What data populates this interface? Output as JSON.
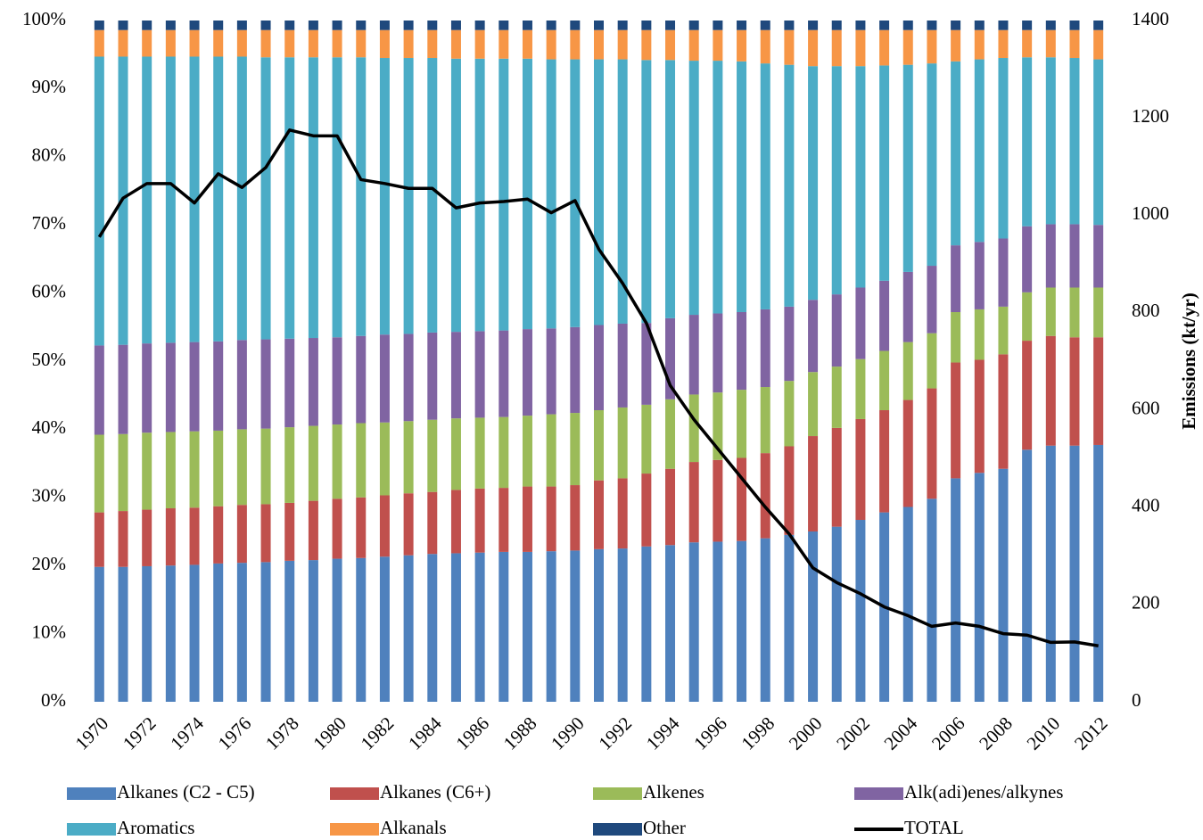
{
  "chart_data": {
    "type": "bar",
    "stacked": true,
    "categories": [
      "1970",
      null,
      "1972",
      null,
      "1974",
      null,
      "1976",
      null,
      "1978",
      null,
      "1980",
      null,
      "1982",
      null,
      "1984",
      null,
      "1986",
      null,
      "1988",
      null,
      "1990",
      null,
      "1992",
      null,
      "1994",
      null,
      "1996",
      null,
      "1998",
      null,
      "2000",
      null,
      "2002",
      null,
      "2004",
      null,
      "2006",
      null,
      "2008",
      null,
      "2010",
      null,
      "2012"
    ],
    "ylim": [
      0,
      100
    ],
    "yticks": [
      {
        "value": 0,
        "label": "0%"
      },
      {
        "value": 10,
        "label": "10%"
      },
      {
        "value": 20,
        "label": "20%"
      },
      {
        "value": 30,
        "label": "30%"
      },
      {
        "value": 40,
        "label": "40%"
      },
      {
        "value": 50,
        "label": "50%"
      },
      {
        "value": 60,
        "label": "60%"
      },
      {
        "value": 70,
        "label": "70%"
      },
      {
        "value": 80,
        "label": "80%"
      },
      {
        "value": 90,
        "label": "90%"
      },
      {
        "value": 100,
        "label": "100%"
      }
    ],
    "y2label": "Emissions (kt/yr)",
    "y2lim": [
      0,
      1400
    ],
    "y2ticks": [
      0,
      200,
      400,
      600,
      800,
      1000,
      1200,
      1400
    ],
    "legend": "bottom",
    "series": [
      {
        "name": "Alkanes (C2 - C5)",
        "color": "#4f81bd",
        "values": [
          19.8,
          19.8,
          19.9,
          20.0,
          20.1,
          20.3,
          20.4,
          20.5,
          20.7,
          20.8,
          21.0,
          21.1,
          21.3,
          21.5,
          21.7,
          21.8,
          21.9,
          22.0,
          22.0,
          22.1,
          22.2,
          22.4,
          22.5,
          22.8,
          23.0,
          23.4,
          23.5,
          23.6,
          24.0,
          24.5,
          25.0,
          25.7,
          26.7,
          27.8,
          28.6,
          29.8,
          32.8,
          33.6,
          34.2,
          37.0,
          37.6,
          37.6,
          37.7
        ]
      },
      {
        "name": "Alkanes (C6+)",
        "color": "#c0504d",
        "values": [
          8.0,
          8.2,
          8.3,
          8.4,
          8.4,
          8.4,
          8.5,
          8.5,
          8.5,
          8.7,
          8.8,
          8.9,
          9.0,
          9.1,
          9.1,
          9.3,
          9.4,
          9.4,
          9.6,
          9.5,
          9.6,
          10.1,
          10.3,
          10.7,
          11.2,
          11.8,
          12.0,
          12.2,
          12.5,
          13.0,
          14.0,
          14.5,
          14.8,
          15.0,
          15.7,
          16.2,
          17.0,
          16.6,
          16.8,
          16.0,
          16.1,
          15.9,
          15.8
        ]
      },
      {
        "name": "Alkenes",
        "color": "#9bbb59",
        "values": [
          11.4,
          11.3,
          11.3,
          11.2,
          11.2,
          11.1,
          11.1,
          11.1,
          11.1,
          11.0,
          10.9,
          10.9,
          10.7,
          10.6,
          10.6,
          10.5,
          10.4,
          10.4,
          10.4,
          10.6,
          10.6,
          10.3,
          10.4,
          10.1,
          10.2,
          9.9,
          9.9,
          10.0,
          9.7,
          9.6,
          9.4,
          9.0,
          8.8,
          8.7,
          8.5,
          8.1,
          7.4,
          7.4,
          7.0,
          7.1,
          7.1,
          7.3,
          7.3
        ]
      },
      {
        "name": "Alk(adi)enes/alkynes",
        "color": "#8064a2",
        "values": [
          13.1,
          13.1,
          13.1,
          13.1,
          13.1,
          13.1,
          13.1,
          13.1,
          13.0,
          12.9,
          12.8,
          12.8,
          12.9,
          12.8,
          12.8,
          12.7,
          12.7,
          12.7,
          12.7,
          12.6,
          12.6,
          12.5,
          12.3,
          12.0,
          11.9,
          11.7,
          11.6,
          11.4,
          11.4,
          10.9,
          10.6,
          10.6,
          10.5,
          10.3,
          10.3,
          9.9,
          9.8,
          9.9,
          10.0,
          9.7,
          9.3,
          9.3,
          9.2
        ]
      },
      {
        "name": "Aromatics",
        "color": "#4bacc6",
        "values": [
          42.4,
          42.3,
          42.1,
          42.0,
          41.9,
          41.8,
          41.6,
          41.4,
          41.3,
          41.2,
          41.1,
          40.9,
          40.6,
          40.5,
          40.3,
          40.1,
          40.0,
          39.9,
          39.7,
          39.5,
          39.3,
          39.0,
          38.8,
          38.6,
          37.9,
          37.3,
          37.1,
          36.8,
          36.1,
          35.5,
          34.3,
          33.5,
          32.5,
          31.6,
          30.4,
          29.7,
          27.0,
          26.8,
          26.5,
          24.8,
          24.5,
          24.4,
          24.3
        ]
      },
      {
        "name": "Alkanals",
        "color": "#f79646",
        "values": [
          3.9,
          3.9,
          3.9,
          3.9,
          3.9,
          3.9,
          3.9,
          4.0,
          4.0,
          4.0,
          4.0,
          4.0,
          4.1,
          4.1,
          4.1,
          4.2,
          4.2,
          4.2,
          4.2,
          4.3,
          4.3,
          4.3,
          4.3,
          4.4,
          4.4,
          4.5,
          4.5,
          4.6,
          4.9,
          5.1,
          5.3,
          5.3,
          5.3,
          5.2,
          5.1,
          4.9,
          4.6,
          4.3,
          4.1,
          4.0,
          4.0,
          4.1,
          4.3
        ]
      },
      {
        "name": "Other",
        "color": "#1f497d",
        "values": [
          1.4,
          1.4,
          1.4,
          1.4,
          1.4,
          1.4,
          1.4,
          1.4,
          1.4,
          1.4,
          1.4,
          1.4,
          1.4,
          1.4,
          1.4,
          1.4,
          1.4,
          1.4,
          1.4,
          1.4,
          1.4,
          1.4,
          1.4,
          1.4,
          1.4,
          1.4,
          1.4,
          1.4,
          1.4,
          1.4,
          1.4,
          1.4,
          1.4,
          1.4,
          1.4,
          1.4,
          1.4,
          1.4,
          1.4,
          1.4,
          1.4,
          1.4,
          1.4
        ]
      },
      {
        "name": "TOTAL",
        "color": "#000000",
        "type": "line",
        "axis": "y2",
        "values": [
          955,
          1035,
          1065,
          1065,
          1025,
          1085,
          1057,
          1098,
          1175,
          1163,
          1163,
          1073,
          1065,
          1055,
          1055,
          1015,
          1025,
          1028,
          1033,
          1005,
          1030,
          930,
          860,
          778,
          650,
          580,
          520,
          460,
          400,
          345,
          275,
          245,
          222,
          195,
          177,
          155,
          162,
          155,
          140,
          137,
          122,
          123,
          115
        ]
      }
    ]
  }
}
